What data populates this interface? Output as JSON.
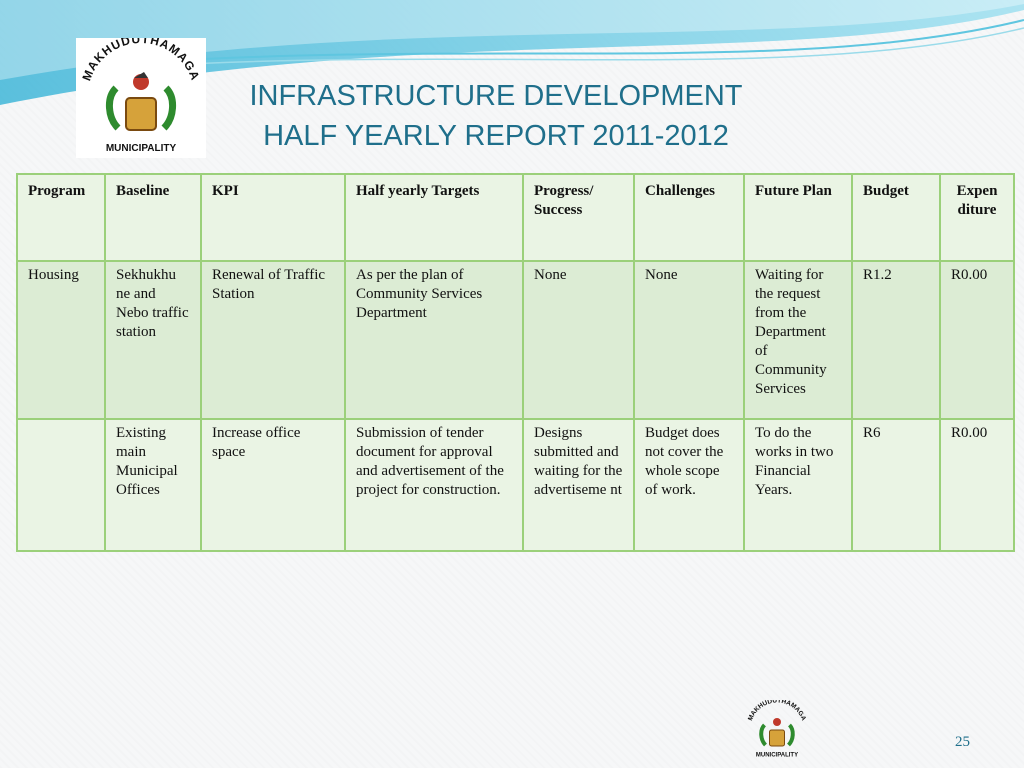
{
  "title": {
    "line1": "INFRASTRUCTURE DEVELOPMENT",
    "line2": "HALF YEARLY REPORT 2011-2012"
  },
  "logo": {
    "top_text": "MAKHUDUTHAMAGA",
    "bottom_text": "MUNICIPALITY"
  },
  "colors": {
    "title": "#1f6f8b",
    "table_border": "#9bd07a",
    "row_light": "#eaf4e4",
    "row_dark": "#dcecd4"
  },
  "table": {
    "headers": [
      "Program",
      "Baseline",
      "KPI",
      "Half yearly Targets",
      "Progress/ Success",
      "Challenges",
      "Future Plan",
      "Budget",
      "Expen diture"
    ],
    "rows": [
      {
        "program": "Housing",
        "baseline": "Sekhukhu ne and Nebo traffic station",
        "kpi": "Renewal of  Traffic Station",
        "targets": "As per the plan of Community Services Department",
        "progress": "None",
        "challenges": "None",
        "future_plan": "Waiting for the request from the Department of Community Services",
        "budget": "R1.2",
        "expenditure": "R0.00"
      },
      {
        "program": "",
        "baseline": "Existing main Municipal Offices",
        "kpi": "Increase office space",
        "targets": "Submission of tender document for approval and advertisement of the project for construction.",
        "progress": "Designs submitted and waiting for the advertiseme nt",
        "challenges": "Budget does not cover the whole scope of work.",
        "future_plan": "To do the works in two Financial Years.",
        "budget": "R6",
        "expenditure": "R0.00"
      }
    ]
  },
  "page_number": "25"
}
